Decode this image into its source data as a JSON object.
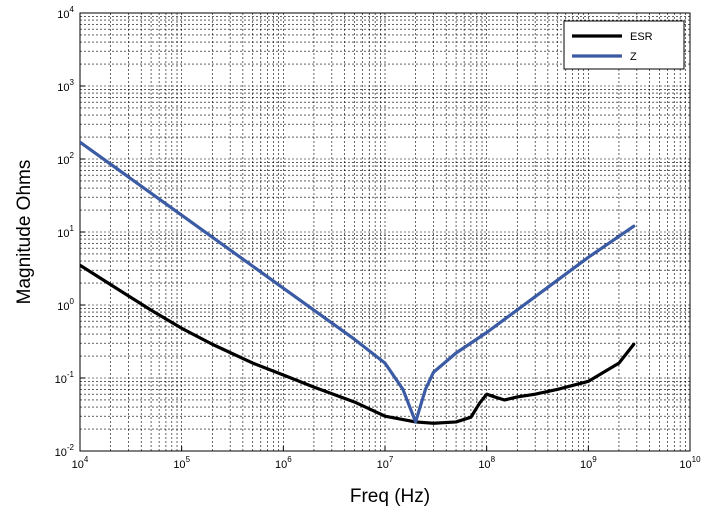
{
  "chart_data": {
    "type": "line",
    "title": "",
    "xlabel": "Freq (Hz)",
    "ylabel": "Magnitude Ohms",
    "x_scale": "log",
    "y_scale": "log",
    "xlim": [
      10000,
      10000000000
    ],
    "ylim": [
      0.01,
      10000
    ],
    "grid": true,
    "legend_position": "top-right",
    "x_ticks": [
      {
        "value": 10000,
        "base": "10",
        "exp": "4"
      },
      {
        "value": 100000,
        "base": "10",
        "exp": "5"
      },
      {
        "value": 1000000,
        "base": "10",
        "exp": "6"
      },
      {
        "value": 10000000,
        "base": "10",
        "exp": "7"
      },
      {
        "value": 100000000,
        "base": "10",
        "exp": "8"
      },
      {
        "value": 1000000000,
        "base": "10",
        "exp": "9"
      },
      {
        "value": 10000000000,
        "base": "10",
        "exp": "10"
      }
    ],
    "y_ticks": [
      {
        "value": 0.01,
        "base": "10",
        "exp": "-2"
      },
      {
        "value": 0.1,
        "base": "10",
        "exp": "-1"
      },
      {
        "value": 1,
        "base": "10",
        "exp": "0"
      },
      {
        "value": 10,
        "base": "10",
        "exp": "1"
      },
      {
        "value": 100,
        "base": "10",
        "exp": "2"
      },
      {
        "value": 1000,
        "base": "10",
        "exp": "3"
      },
      {
        "value": 10000,
        "base": "10",
        "exp": "4"
      }
    ],
    "series": [
      {
        "name": "ESR",
        "color": "#000000",
        "x": [
          10000,
          20000,
          50000,
          100000,
          200000,
          500000,
          1000000,
          2000000,
          5000000,
          10000000,
          20000000,
          30000000,
          50000000,
          70000000,
          85000000,
          100000000,
          120000000,
          150000000,
          200000000,
          300000000,
          500000000,
          1000000000,
          2000000000,
          2800000000
        ],
        "y": [
          3.5,
          1.9,
          0.85,
          0.48,
          0.29,
          0.16,
          0.11,
          0.075,
          0.047,
          0.03,
          0.025,
          0.024,
          0.025,
          0.029,
          0.045,
          0.06,
          0.055,
          0.05,
          0.055,
          0.06,
          0.07,
          0.09,
          0.16,
          0.29
        ]
      },
      {
        "name": "Z",
        "color": "#3b5ba5",
        "x": [
          10000,
          100000,
          1000000,
          5000000,
          10000000,
          15000000,
          20000000,
          25000000,
          30000000,
          50000000,
          100000000,
          300000000,
          1000000000,
          2800000000
        ],
        "y": [
          170,
          17,
          1.7,
          0.34,
          0.16,
          0.07,
          0.025,
          0.07,
          0.12,
          0.22,
          0.42,
          1.3,
          4.5,
          12
        ]
      }
    ]
  }
}
